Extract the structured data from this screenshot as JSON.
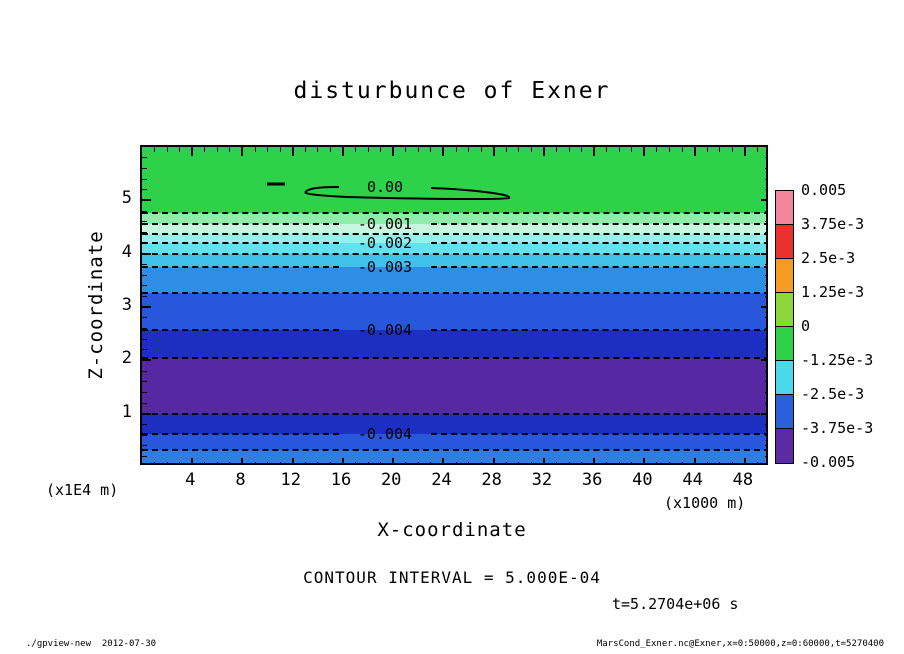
{
  "chart_data": {
    "type": "filled_contour",
    "title": "disturbunce of Exner",
    "xlabel": "X-coordinate",
    "ylabel": "Z-coordinate",
    "x_unit": "(x1000 m)",
    "y_unit": "(x1E4 m)",
    "xlim": [
      0,
      50
    ],
    "ylim": [
      0,
      6
    ],
    "xticks": [
      4,
      8,
      12,
      16,
      20,
      24,
      28,
      32,
      36,
      40,
      44,
      48
    ],
    "yticks": [
      1,
      2,
      3,
      4,
      5
    ],
    "x_minor_step": 1,
    "y_minor_step": 0.2,
    "contour_interval_text": "CONTOUR INTERVAL = 5.000E-04",
    "time_text": "t=5.2704e+06 s",
    "footer_left": "./gpview-new  2012-07-30",
    "footer_right": "MarsCond_Exner.nc@Exner,x=0:50000,z=0:60000,t=5270400",
    "zero_contour": {
      "label": "0.00",
      "z_approx": 5.15,
      "x_from": 12.7,
      "x_to": 29.5
    },
    "colorbar": {
      "labels": [
        "0.005",
        "3.75e-3",
        "2.5e-3",
        "1.25e-3",
        "0",
        "-1.25e-3",
        "-2.5e-3",
        "-3.75e-3",
        "-0.005"
      ],
      "segment_colors": [
        "#f2849b",
        "#e8322c",
        "#f59a23",
        "#8ed63a",
        "#2ed24a",
        "#4ad9e9",
        "#2a5fdd",
        "#5b2ba6"
      ]
    },
    "bands": [
      {
        "z_from": 6.0,
        "z_to": 4.76,
        "color": "#2ed24a",
        "level": "0 to -0.0005"
      },
      {
        "z_from": 4.76,
        "z_to": 4.56,
        "color": "#90eda9",
        "level": "-0.0005 to -0.001"
      },
      {
        "z_from": 4.56,
        "z_to": 4.37,
        "color": "#c8f7df",
        "level": "-0.001 to -0.0015"
      },
      {
        "z_from": 4.37,
        "z_to": 4.2,
        "color": "#96f1ea",
        "level": "-0.0015 to -0.002"
      },
      {
        "z_from": 4.2,
        "z_to": 3.99,
        "color": "#62e1ef",
        "level": "-0.002 to -0.0025"
      },
      {
        "z_from": 3.99,
        "z_to": 3.75,
        "color": "#40c1ea",
        "level": "-0.0025 to -0.003"
      },
      {
        "z_from": 3.75,
        "z_to": 3.26,
        "color": "#2f8de6",
        "level": "-0.003 to -0.0035"
      },
      {
        "z_from": 3.26,
        "z_to": 2.57,
        "color": "#2857dc",
        "level": "-0.0035 to -0.004"
      },
      {
        "z_from": 2.57,
        "z_to": 2.04,
        "color": "#1d2fc3",
        "level": "-0.004 to -0.0045"
      },
      {
        "z_from": 2.04,
        "z_to": 0.99,
        "color": "#5628a2",
        "level": "below -0.0045"
      },
      {
        "z_from": 0.99,
        "z_to": 0.62,
        "color": "#1d2fc3",
        "level": "-0.004 to -0.0045"
      },
      {
        "z_from": 0.62,
        "z_to": 0.32,
        "color": "#2857dc",
        "level": "-0.0035 to -0.004"
      },
      {
        "z_from": 0.32,
        "z_to": 0.0,
        "color": "#2f7ce3",
        "level": "-0.003 to -0.0035"
      }
    ],
    "contours": [
      {
        "z": 4.76,
        "label": null,
        "value": -0.0005
      },
      {
        "z": 4.56,
        "label": "-0.001",
        "value": -0.001
      },
      {
        "z": 4.37,
        "label": null,
        "value": -0.0015
      },
      {
        "z": 4.2,
        "label": "-0.002",
        "value": -0.002
      },
      {
        "z": 3.99,
        "label": null,
        "value": -0.0025
      },
      {
        "z": 3.75,
        "label": "-0.003",
        "value": -0.003
      },
      {
        "z": 3.26,
        "label": null,
        "value": -0.0035
      },
      {
        "z": 2.57,
        "label": "-0.004",
        "value": -0.004
      },
      {
        "z": 2.04,
        "label": null,
        "value": -0.0045
      },
      {
        "z": 0.99,
        "label": null,
        "value": -0.0045
      },
      {
        "z": 0.62,
        "label": "-0.004",
        "value": -0.004
      },
      {
        "z": 0.32,
        "label": null,
        "value": -0.0035
      }
    ]
  }
}
